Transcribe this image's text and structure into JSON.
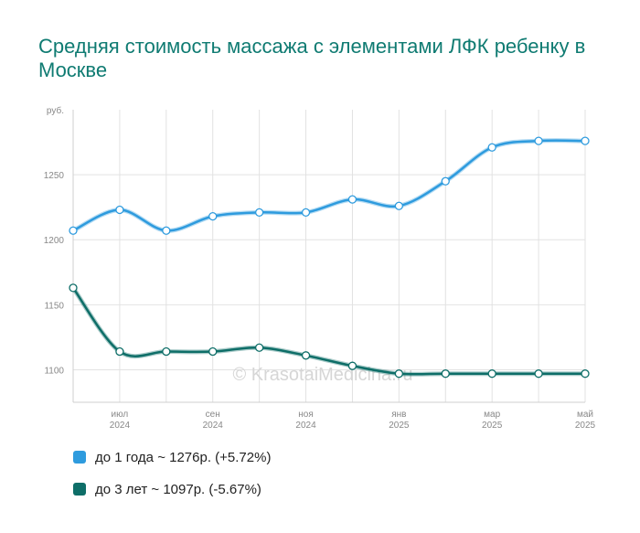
{
  "title": "Средняя стоимость массажа с элементами ЛФК ребенку в Москве",
  "watermark": "© KrasotaiMedicina.ru",
  "legend": [
    {
      "label": "до 1 года ~ 1276р. (+5.72%)",
      "color": "#2e9bde"
    },
    {
      "label": "до 3 лет ~ 1097р. (-5.67%)",
      "color": "#0e6e68"
    }
  ],
  "chart_data": {
    "type": "line",
    "ylabel": "руб.",
    "ylim": [
      1075,
      1300
    ],
    "y_ticks": [
      1100,
      1150,
      1200,
      1250
    ],
    "x_points": 12,
    "x_labels": [
      {
        "index": 1,
        "month": "июл",
        "year": "2024"
      },
      {
        "index": 3,
        "month": "сен",
        "year": "2024"
      },
      {
        "index": 5,
        "month": "ноя",
        "year": "2024"
      },
      {
        "index": 7,
        "month": "янв",
        "year": "2025"
      },
      {
        "index": 9,
        "month": "мар",
        "year": "2025"
      },
      {
        "index": 11,
        "month": "май",
        "year": "2025"
      }
    ],
    "grid": true,
    "series": [
      {
        "name": "до 1 года",
        "color": "#2e9bde",
        "values": [
          1207,
          1223,
          1207,
          1218,
          1221,
          1221,
          1231,
          1226,
          1245,
          1271,
          1276,
          1276
        ]
      },
      {
        "name": "до 3 лет",
        "color": "#0e6e68",
        "values": [
          1163,
          1114,
          1114,
          1114,
          1117,
          1111,
          1103,
          1097,
          1097,
          1097,
          1097,
          1097
        ]
      }
    ]
  }
}
